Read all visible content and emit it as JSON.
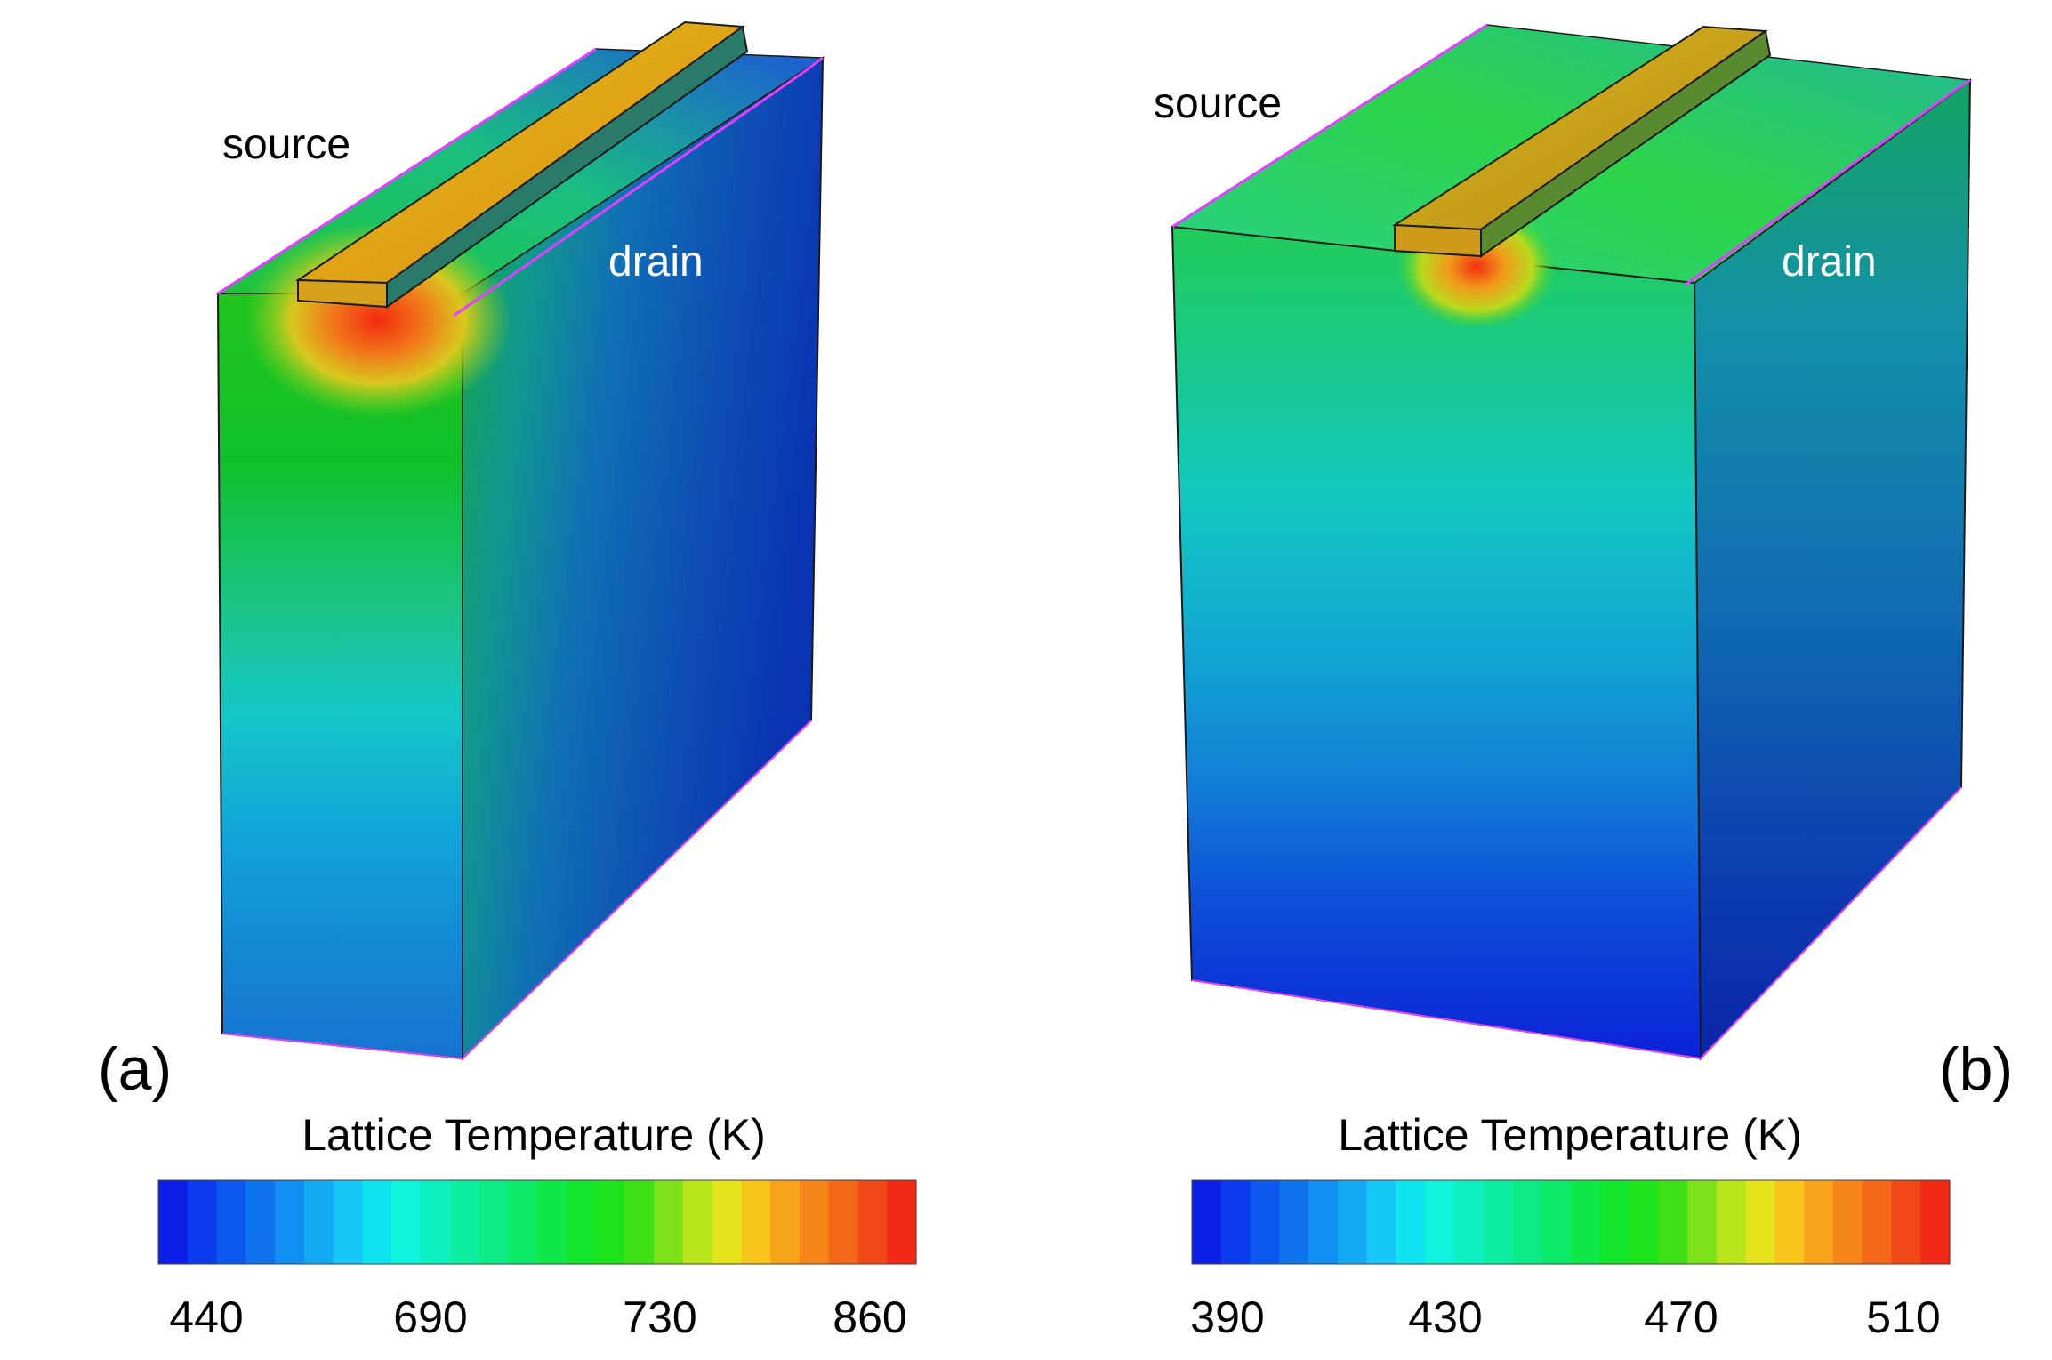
{
  "panels": [
    {
      "id": "a",
      "panel_label": "(a)",
      "source_label": "source",
      "drain_label": "drain",
      "colorbar_title": "Lattice Temperature (K)",
      "colorbar_ticks": [
        "440",
        "690",
        "730",
        "860"
      ]
    },
    {
      "id": "b",
      "panel_label": "(b)",
      "source_label": "source",
      "drain_label": "drain",
      "colorbar_title": "Lattice Temperature (K)",
      "colorbar_ticks": [
        "390",
        "430",
        "470",
        "510"
      ]
    }
  ],
  "colors": {
    "colorbar": [
      "#0b1fe6",
      "#0a3cee",
      "#0d57ef",
      "#0f73f0",
      "#118ef2",
      "#13aaf2",
      "#16c6f4",
      "#10e3f0",
      "#0ff2dc",
      "#0ef0bf",
      "#0eeea2",
      "#0dec84",
      "#0de966",
      "#10e84a",
      "#14e52d",
      "#1de41a",
      "#40e016",
      "#7de218",
      "#b8e51c",
      "#e4e31c",
      "#f6c41a",
      "#f7a41a",
      "#f68519",
      "#f46618",
      "#f24717",
      "#f02a17"
    ],
    "edge_magenta": "#e040ff",
    "edge_dark": "#1a1a1a"
  }
}
